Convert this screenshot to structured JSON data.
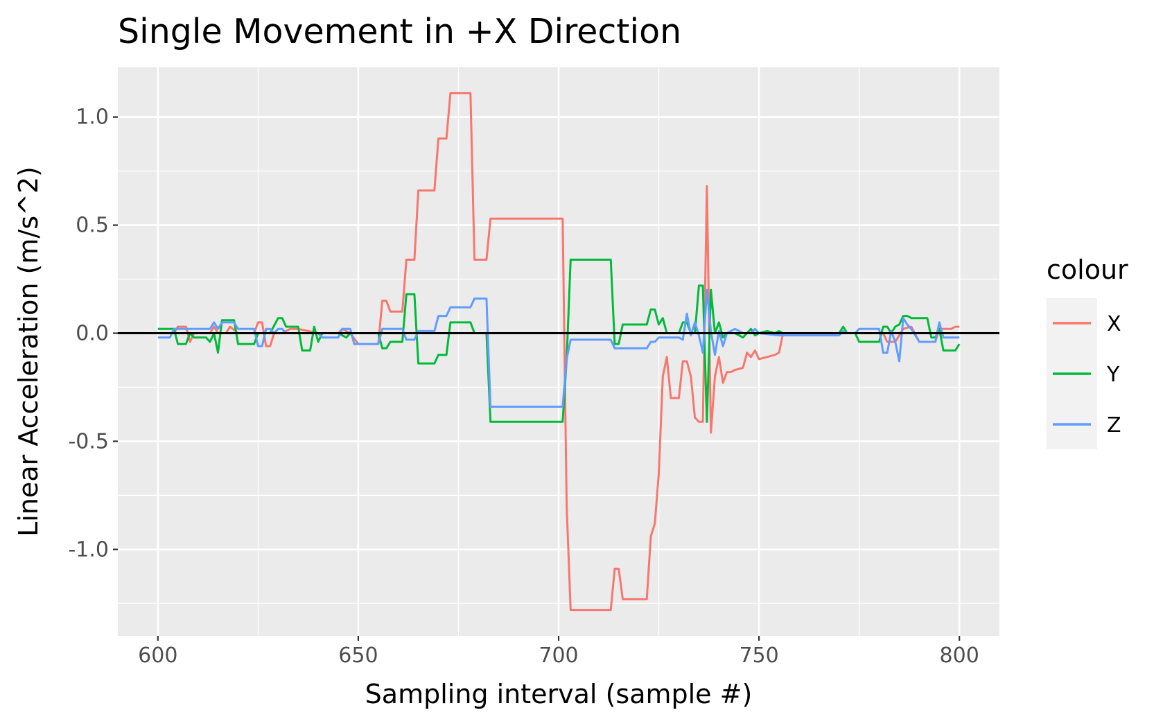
{
  "chart_data": {
    "type": "line",
    "title": "Single Movement in +X Direction",
    "xlabel": "Sampling interval (sample #)",
    "ylabel": "Linear Acceleration (m/s^2)",
    "xlim": [
      590,
      810
    ],
    "ylim": [
      -1.4,
      1.23
    ],
    "x_ticks": [
      600,
      650,
      700,
      750,
      800
    ],
    "y_ticks": [
      -1.0,
      -0.5,
      0.0,
      0.5,
      1.0
    ],
    "y_tick_labels": [
      "-1.0",
      "-0.5",
      "0.0",
      "0.5",
      "1.0"
    ],
    "grid": true,
    "reference_line": 0.0,
    "legend": {
      "title": "colour",
      "position": "right"
    },
    "series": [
      {
        "name": "X",
        "color": "#F8766D",
        "points": [
          [
            600,
            0.0
          ],
          [
            604,
            0.0
          ],
          [
            605,
            0.03
          ],
          [
            607,
            0.03
          ],
          [
            608,
            -0.04
          ],
          [
            609,
            0.0
          ],
          [
            613,
            0.0
          ],
          [
            614,
            0.03
          ],
          [
            615,
            0.0
          ],
          [
            617,
            0.0
          ],
          [
            618,
            0.03
          ],
          [
            620,
            0.0
          ],
          [
            624,
            0.0
          ],
          [
            625,
            0.05
          ],
          [
            626,
            0.05
          ],
          [
            627,
            -0.06
          ],
          [
            628,
            -0.06
          ],
          [
            629,
            0.0
          ],
          [
            631,
            0.0
          ],
          [
            633,
            0.02
          ],
          [
            635,
            0.02
          ],
          [
            640,
            0.0
          ],
          [
            645,
            0.0
          ],
          [
            646,
            0.02
          ],
          [
            648,
            0.0
          ],
          [
            650,
            -0.05
          ],
          [
            655,
            -0.05
          ],
          [
            656,
            0.15
          ],
          [
            657,
            0.15
          ],
          [
            658,
            0.1
          ],
          [
            661,
            0.1
          ],
          [
            662,
            0.34
          ],
          [
            664,
            0.34
          ],
          [
            665,
            0.66
          ],
          [
            669,
            0.66
          ],
          [
            670,
            0.9
          ],
          [
            672,
            0.9
          ],
          [
            673,
            1.11
          ],
          [
            678,
            1.11
          ],
          [
            679,
            0.34
          ],
          [
            682,
            0.34
          ],
          [
            683,
            0.53
          ],
          [
            701,
            0.53
          ],
          [
            702,
            -0.8
          ],
          [
            703,
            -1.28
          ],
          [
            713,
            -1.28
          ],
          [
            714,
            -1.09
          ],
          [
            715,
            -1.09
          ],
          [
            716,
            -1.23
          ],
          [
            722,
            -1.23
          ],
          [
            723,
            -0.94
          ],
          [
            724,
            -0.88
          ],
          [
            725,
            -0.65
          ],
          [
            726,
            -0.2
          ],
          [
            727,
            -0.11
          ],
          [
            728,
            -0.3
          ],
          [
            730,
            -0.3
          ],
          [
            731,
            -0.13
          ],
          [
            732,
            -0.13
          ],
          [
            733,
            -0.2
          ],
          [
            734,
            -0.39
          ],
          [
            735,
            -0.41
          ],
          [
            736,
            -0.41
          ],
          [
            737,
            0.68
          ],
          [
            738,
            -0.46
          ],
          [
            739,
            -0.2
          ],
          [
            740,
            -0.11
          ],
          [
            741,
            -0.23
          ],
          [
            742,
            -0.18
          ],
          [
            743,
            -0.18
          ],
          [
            744,
            -0.17
          ],
          [
            746,
            -0.16
          ],
          [
            747,
            -0.09
          ],
          [
            748,
            -0.11
          ],
          [
            749,
            -0.08
          ],
          [
            750,
            -0.12
          ],
          [
            752,
            -0.11
          ],
          [
            754,
            -0.1
          ],
          [
            755,
            -0.09
          ],
          [
            756,
            0.0
          ],
          [
            780,
            0.0
          ],
          [
            781,
            0.0
          ],
          [
            782,
            -0.04
          ],
          [
            784,
            -0.04
          ],
          [
            786,
            0.02
          ],
          [
            788,
            0.03
          ],
          [
            790,
            -0.04
          ],
          [
            794,
            -0.04
          ],
          [
            795,
            0.02
          ],
          [
            798,
            0.02
          ],
          [
            799,
            0.03
          ],
          [
            800,
            0.03
          ]
        ]
      },
      {
        "name": "Y",
        "color": "#00BA38",
        "points": [
          [
            600,
            0.02
          ],
          [
            604,
            0.02
          ],
          [
            605,
            -0.05
          ],
          [
            607,
            -0.05
          ],
          [
            608,
            0.0
          ],
          [
            609,
            -0.02
          ],
          [
            612,
            -0.02
          ],
          [
            613,
            -0.04
          ],
          [
            614,
            0.0
          ],
          [
            615,
            -0.09
          ],
          [
            616,
            0.06
          ],
          [
            619,
            0.06
          ],
          [
            620,
            -0.05
          ],
          [
            624,
            -0.05
          ],
          [
            625,
            0.0
          ],
          [
            628,
            0.0
          ],
          [
            630,
            0.07
          ],
          [
            631,
            0.07
          ],
          [
            632,
            0.03
          ],
          [
            635,
            0.03
          ],
          [
            636,
            -0.08
          ],
          [
            638,
            -0.08
          ],
          [
            639,
            0.03
          ],
          [
            640,
            -0.04
          ],
          [
            641,
            0.0
          ],
          [
            645,
            0.0
          ],
          [
            647,
            -0.02
          ],
          [
            648,
            0.0
          ],
          [
            650,
            0.0
          ],
          [
            655,
            0.0
          ],
          [
            656,
            -0.07
          ],
          [
            657,
            -0.07
          ],
          [
            658,
            -0.04
          ],
          [
            661,
            -0.04
          ],
          [
            662,
            0.18
          ],
          [
            664,
            0.18
          ],
          [
            665,
            -0.14
          ],
          [
            669,
            -0.14
          ],
          [
            670,
            -0.1
          ],
          [
            672,
            -0.1
          ],
          [
            673,
            0.05
          ],
          [
            678,
            0.05
          ],
          [
            679,
            0.0
          ],
          [
            682,
            0.0
          ],
          [
            683,
            -0.41
          ],
          [
            701,
            -0.41
          ],
          [
            702,
            -0.12
          ],
          [
            703,
            0.34
          ],
          [
            713,
            0.34
          ],
          [
            714,
            -0.05
          ],
          [
            715,
            -0.05
          ],
          [
            716,
            0.04
          ],
          [
            722,
            0.04
          ],
          [
            723,
            0.11
          ],
          [
            724,
            0.11
          ],
          [
            725,
            0.04
          ],
          [
            726,
            0.07
          ],
          [
            727,
            0.0
          ],
          [
            730,
            0.0
          ],
          [
            731,
            0.05
          ],
          [
            732,
            0.05
          ],
          [
            733,
            0.0
          ],
          [
            734,
            0.0
          ],
          [
            735,
            0.22
          ],
          [
            736,
            0.22
          ],
          [
            737,
            -0.41
          ],
          [
            738,
            0.2
          ],
          [
            739,
            0.0
          ],
          [
            740,
            0.05
          ],
          [
            741,
            -0.02
          ],
          [
            742,
            0.0
          ],
          [
            744,
            0.0
          ],
          [
            746,
            -0.02
          ],
          [
            747,
            0.0
          ],
          [
            748,
            0.02
          ],
          [
            749,
            -0.01
          ],
          [
            750,
            0.0
          ],
          [
            752,
            0.01
          ],
          [
            754,
            0.0
          ],
          [
            755,
            0.01
          ],
          [
            756,
            0.0
          ],
          [
            770,
            0.0
          ],
          [
            771,
            0.03
          ],
          [
            772,
            0.0
          ],
          [
            774,
            0.0
          ],
          [
            775,
            -0.04
          ],
          [
            780,
            -0.04
          ],
          [
            781,
            0.03
          ],
          [
            782,
            0.03
          ],
          [
            783,
            0.0
          ],
          [
            784,
            0.03
          ],
          [
            785,
            0.04
          ],
          [
            786,
            0.08
          ],
          [
            787,
            0.08
          ],
          [
            788,
            0.07
          ],
          [
            792,
            0.07
          ],
          [
            793,
            -0.02
          ],
          [
            794,
            -0.02
          ],
          [
            795,
            0.02
          ],
          [
            796,
            -0.08
          ],
          [
            799,
            -0.08
          ],
          [
            800,
            -0.05
          ]
        ]
      },
      {
        "name": "Z",
        "color": "#619CFF",
        "points": [
          [
            600,
            -0.02
          ],
          [
            603,
            -0.02
          ],
          [
            604,
            0.02
          ],
          [
            613,
            0.02
          ],
          [
            614,
            0.05
          ],
          [
            615,
            0.02
          ],
          [
            616,
            0.05
          ],
          [
            619,
            0.05
          ],
          [
            620,
            0.02
          ],
          [
            624,
            0.02
          ],
          [
            625,
            -0.06
          ],
          [
            626,
            -0.06
          ],
          [
            627,
            0.02
          ],
          [
            628,
            0.02
          ],
          [
            629,
            0.0
          ],
          [
            630,
            0.02
          ],
          [
            631,
            0.02
          ],
          [
            632,
            0.0
          ],
          [
            640,
            0.0
          ],
          [
            641,
            -0.02
          ],
          [
            645,
            -0.02
          ],
          [
            646,
            0.02
          ],
          [
            648,
            0.02
          ],
          [
            649,
            -0.05
          ],
          [
            655,
            -0.05
          ],
          [
            656,
            0.02
          ],
          [
            661,
            0.02
          ],
          [
            662,
            -0.03
          ],
          [
            664,
            -0.03
          ],
          [
            665,
            0.01
          ],
          [
            669,
            0.01
          ],
          [
            670,
            0.08
          ],
          [
            672,
            0.08
          ],
          [
            673,
            0.12
          ],
          [
            678,
            0.12
          ],
          [
            679,
            0.16
          ],
          [
            682,
            0.16
          ],
          [
            683,
            -0.34
          ],
          [
            701,
            -0.34
          ],
          [
            702,
            -0.12
          ],
          [
            703,
            -0.03
          ],
          [
            713,
            -0.03
          ],
          [
            714,
            -0.07
          ],
          [
            722,
            -0.07
          ],
          [
            723,
            -0.04
          ],
          [
            724,
            -0.04
          ],
          [
            725,
            -0.02
          ],
          [
            730,
            -0.02
          ],
          [
            731,
            -0.03
          ],
          [
            732,
            0.09
          ],
          [
            733,
            -0.01
          ],
          [
            734,
            0.05
          ],
          [
            735,
            -0.01
          ],
          [
            736,
            -0.09
          ],
          [
            737,
            0.2
          ],
          [
            738,
            0.01
          ],
          [
            739,
            -0.1
          ],
          [
            740,
            0.01
          ],
          [
            741,
            -0.06
          ],
          [
            742,
            0.0
          ],
          [
            744,
            0.02
          ],
          [
            746,
            0.0
          ],
          [
            748,
            0.0
          ],
          [
            749,
            0.02
          ],
          [
            750,
            0.0
          ],
          [
            755,
            -0.01
          ],
          [
            770,
            -0.01
          ],
          [
            771,
            0.01
          ],
          [
            772,
            0.0
          ],
          [
            774,
            0.0
          ],
          [
            775,
            0.02
          ],
          [
            780,
            0.02
          ],
          [
            781,
            -0.09
          ],
          [
            782,
            -0.09
          ],
          [
            783,
            0.01
          ],
          [
            784,
            -0.04
          ],
          [
            785,
            -0.13
          ],
          [
            786,
            0.07
          ],
          [
            787,
            0.04
          ],
          [
            788,
            0.02
          ],
          [
            790,
            -0.04
          ],
          [
            794,
            -0.04
          ],
          [
            795,
            0.05
          ],
          [
            796,
            -0.02
          ],
          [
            800,
            -0.02
          ]
        ]
      }
    ]
  }
}
